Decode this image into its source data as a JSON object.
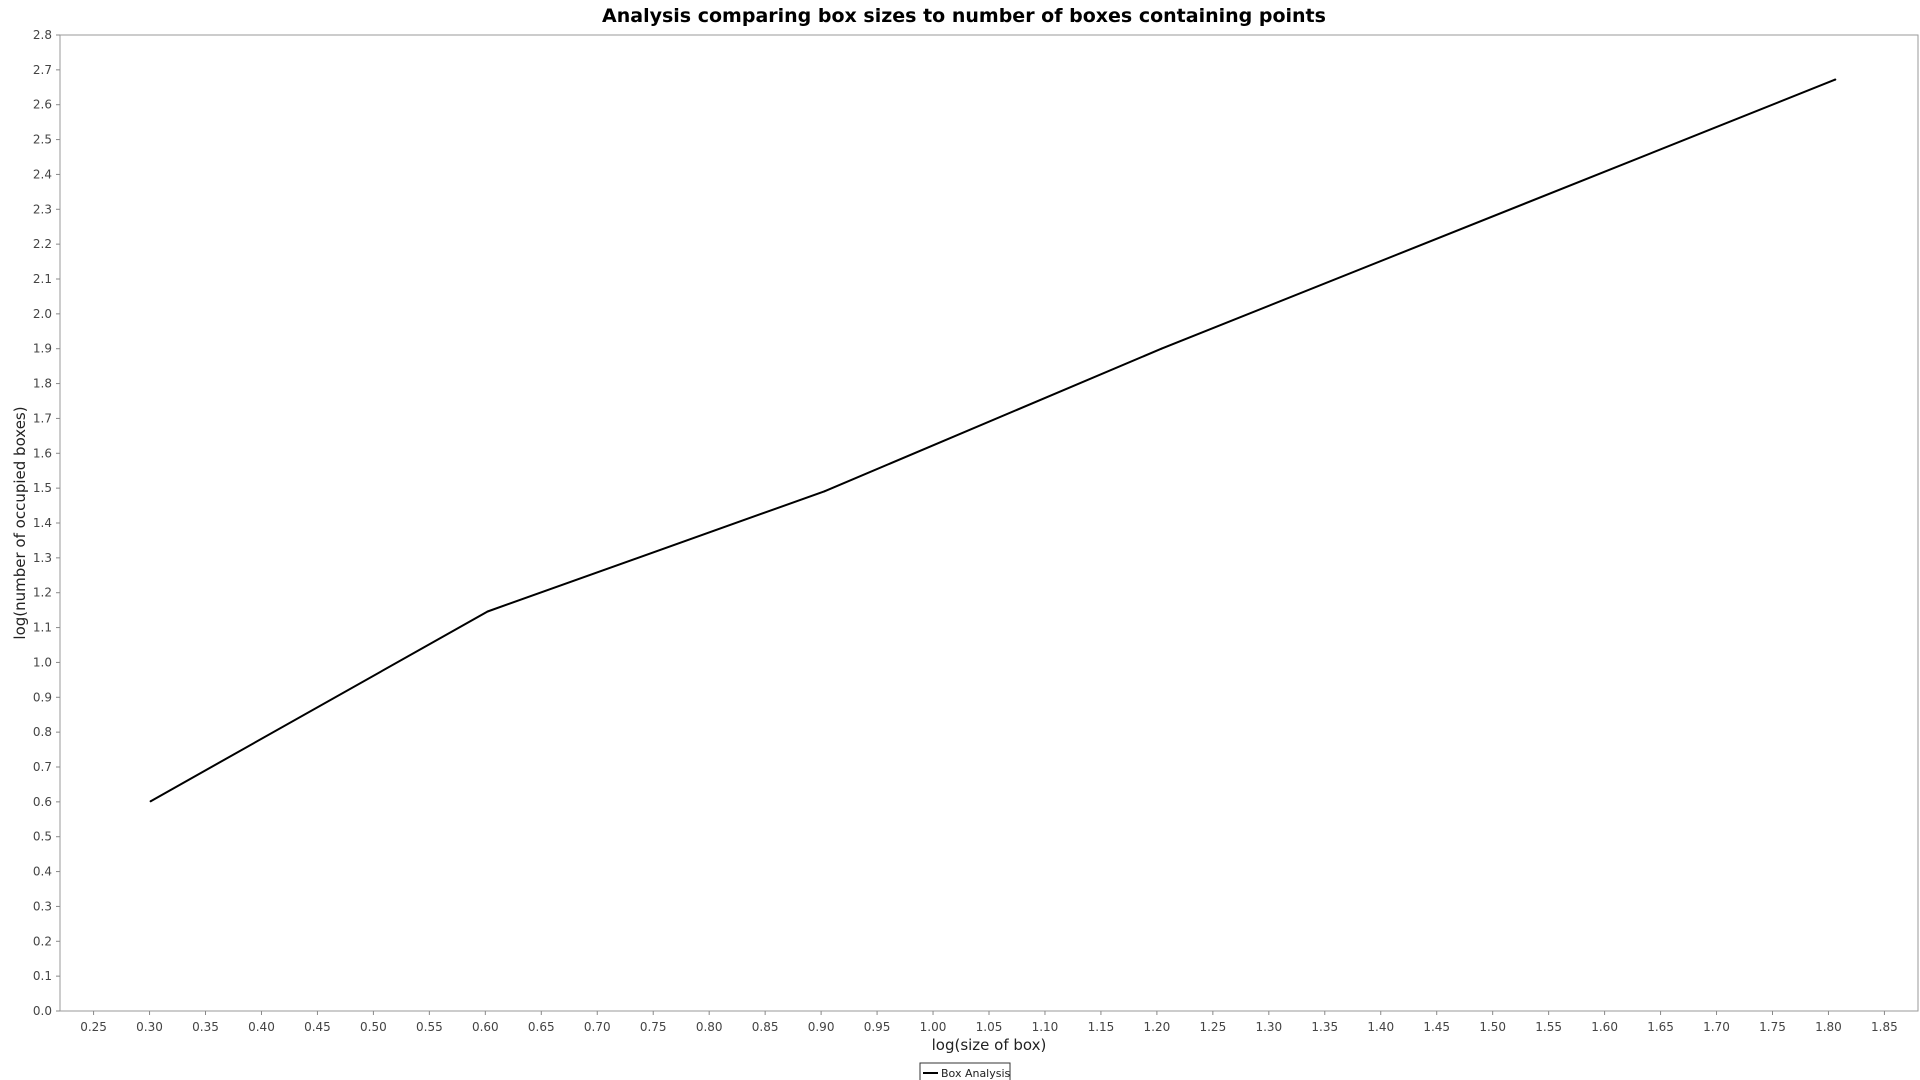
{
  "chart_data": {
    "type": "line",
    "title": "Analysis comparing box sizes to number of boxes containing points",
    "xlabel": "log(size of box)",
    "ylabel": "log(number of occupied boxes)",
    "xlim": [
      0.22,
      1.88
    ],
    "ylim": [
      0.0,
      2.8
    ],
    "x_ticks": [
      "0.25",
      "0.30",
      "0.35",
      "0.40",
      "0.45",
      "0.50",
      "0.55",
      "0.60",
      "0.65",
      "0.70",
      "0.75",
      "0.80",
      "0.85",
      "0.90",
      "0.95",
      "1.00",
      "1.05",
      "1.10",
      "1.15",
      "1.20",
      "1.25",
      "1.30",
      "1.35",
      "1.40",
      "1.45",
      "1.50",
      "1.55",
      "1.60",
      "1.65",
      "1.70",
      "1.75",
      "1.80",
      "1.85"
    ],
    "y_ticks": [
      "0.0",
      "0.1",
      "0.2",
      "0.3",
      "0.4",
      "0.5",
      "0.6",
      "0.7",
      "0.8",
      "0.9",
      "1.0",
      "1.1",
      "1.2",
      "1.3",
      "1.4",
      "1.5",
      "1.6",
      "1.7",
      "1.8",
      "1.9",
      "2.0",
      "2.1",
      "2.2",
      "2.3",
      "2.4",
      "2.5",
      "2.6",
      "2.7",
      "2.8"
    ],
    "grid": false,
    "legend_position": "bottom-center",
    "series": [
      {
        "name": "Box Analysis",
        "color": "#000000",
        "x": [
          0.301,
          0.602,
          0.903,
          1.204,
          1.806
        ],
        "y": [
          0.602,
          1.146,
          1.491,
          1.9,
          2.672
        ]
      }
    ]
  }
}
